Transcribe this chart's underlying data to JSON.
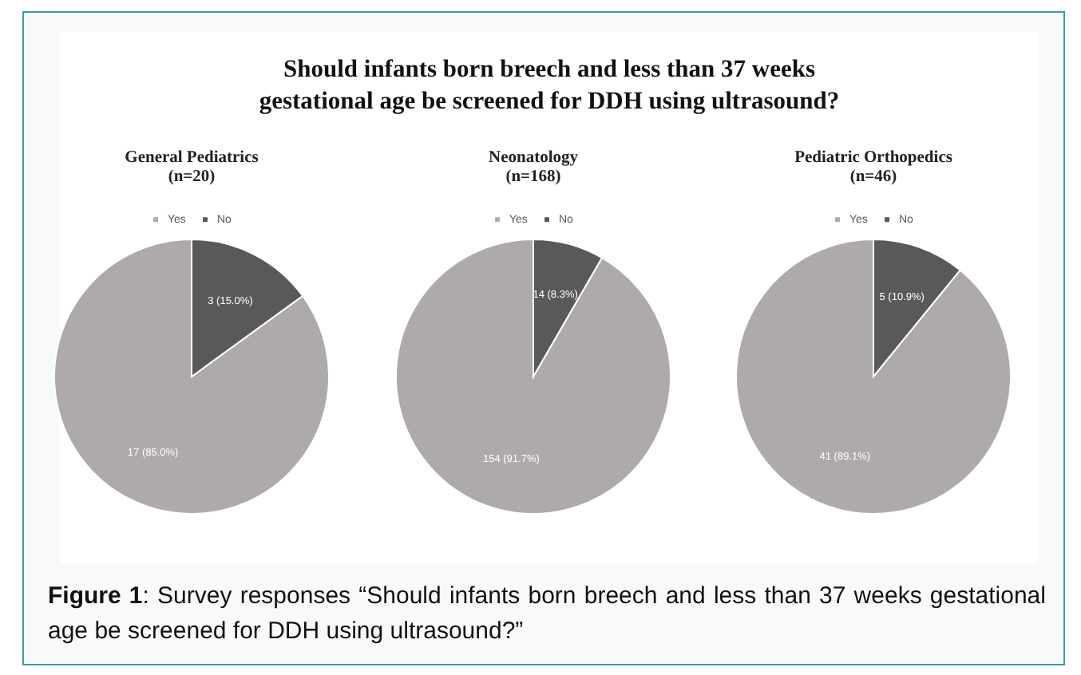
{
  "chart_data": [
    {
      "type": "other",
      "title": "Should infants born breech and less than 37 weeks\ngestational age be screened for DDH using ultrasound?"
    },
    {
      "type": "pie",
      "title": "General Pediatrics\n(n=20)",
      "categories": [
        "Yes",
        "No"
      ],
      "values": [
        17,
        3
      ],
      "colors": [
        "#aeaaaa",
        "#595959"
      ],
      "value_labels": [
        "17 (85.0%)",
        "3 (15.0%)"
      ],
      "legend": "top"
    },
    {
      "type": "pie",
      "title": "Neonatology\n(n=168)",
      "categories": [
        "Yes",
        "No"
      ],
      "values": [
        154,
        14
      ],
      "colors": [
        "#aeaaaa",
        "#595959"
      ],
      "value_labels": [
        "154 (91.7%)",
        "14 (8.3%)"
      ],
      "legend": "top"
    },
    {
      "type": "pie",
      "title": "Pediatric Orthopedics\n(n=46)",
      "categories": [
        "Yes",
        "No"
      ],
      "values": [
        41,
        5
      ],
      "colors": [
        "#aeaaaa",
        "#595959"
      ],
      "value_labels": [
        "41 (89.1%)",
        "5 (10.9%)"
      ],
      "legend": "top"
    },
    {
      "type": "other",
      "annotations": [
        "Figure 1: Survey responses “Should infants born breech and less than 37 weeks gestational age be screened for DDH using ultrasound?”"
      ]
    }
  ]
}
